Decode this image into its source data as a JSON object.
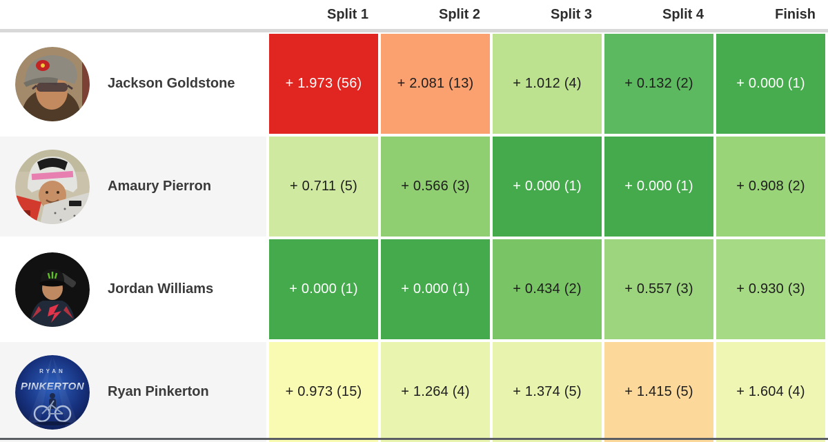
{
  "table": {
    "columns": [
      "Split 1",
      "Split 2",
      "Split 3",
      "Split 4",
      "Finish"
    ],
    "riders": [
      {
        "name": "Jackson Goldstone",
        "avatar": "jackson",
        "cells": [
          {
            "text": "+ 1.973 (56)",
            "bg": "#e12521",
            "fg": "#ffffff"
          },
          {
            "text": "+ 2.081 (13)",
            "bg": "#fba170",
            "fg": "#1d1d1d"
          },
          {
            "text": "+ 1.012 (4)",
            "bg": "#bce28f",
            "fg": "#1d1d1d"
          },
          {
            "text": "+ 0.132 (2)",
            "bg": "#5db95f",
            "fg": "#1d1d1d"
          },
          {
            "text": "+ 0.000 (1)",
            "bg": "#47ac4e",
            "fg": "#ffffff"
          }
        ]
      },
      {
        "name": "Amaury Pierron",
        "avatar": "amaury",
        "cells": [
          {
            "text": "+ 0.711 (5)",
            "bg": "#cfe9a1",
            "fg": "#1d1d1d"
          },
          {
            "text": "+ 0.566 (3)",
            "bg": "#8fcf71",
            "fg": "#1d1d1d"
          },
          {
            "text": "+ 0.000 (1)",
            "bg": "#44aa4c",
            "fg": "#ffffff"
          },
          {
            "text": "+ 0.000 (1)",
            "bg": "#44aa4c",
            "fg": "#ffffff"
          },
          {
            "text": "+ 0.908 (2)",
            "bg": "#9ad478",
            "fg": "#1d1d1d"
          }
        ]
      },
      {
        "name": "Jordan Williams",
        "avatar": "jordan",
        "cells": [
          {
            "text": "+ 0.000 (1)",
            "bg": "#44aa4c",
            "fg": "#ffffff"
          },
          {
            "text": "+ 0.000 (1)",
            "bg": "#44aa4c",
            "fg": "#ffffff"
          },
          {
            "text": "+ 0.434 (2)",
            "bg": "#79c464",
            "fg": "#1d1d1d"
          },
          {
            "text": "+ 0.557 (3)",
            "bg": "#9cd57d",
            "fg": "#1d1d1d"
          },
          {
            "text": "+ 0.930 (3)",
            "bg": "#a7da84",
            "fg": "#1d1d1d"
          }
        ]
      },
      {
        "name": "Ryan Pinkerton",
        "avatar": "ryan",
        "avatar_text": {
          "line1": "RYAN",
          "line2": "PINKERTON"
        },
        "cells": [
          {
            "text": "+ 0.973 (15)",
            "bg": "#fafbb2",
            "fg": "#1d1d1d"
          },
          {
            "text": "+ 1.264 (4)",
            "bg": "#e9f4ae",
            "fg": "#1d1d1d"
          },
          {
            "text": "+ 1.374 (5)",
            "bg": "#e8f3ad",
            "fg": "#1d1d1d"
          },
          {
            "text": "+ 1.415 (5)",
            "bg": "#fcd99b",
            "fg": "#1d1d1d"
          },
          {
            "text": "+ 1.604 (4)",
            "bg": "#eff6b4",
            "fg": "#1d1d1d"
          }
        ]
      }
    ]
  },
  "palette": {
    "row_alt_bg": "#f5f5f6",
    "separator": "#d8d8d8",
    "header_text": "#2d2d2d",
    "name_text": "#3a3a3a",
    "bottom_bar": "#5a5e62"
  },
  "chart_data": {
    "type": "heatmap",
    "title": "",
    "columns": [
      "Split 1",
      "Split 2",
      "Split 3",
      "Split 4",
      "Finish"
    ],
    "rows": [
      "Jackson Goldstone",
      "Amaury Pierron",
      "Jordan Williams",
      "Ryan Pinkerton"
    ],
    "values_gap_seconds": [
      [
        1.973,
        2.081,
        1.012,
        0.132,
        0.0
      ],
      [
        0.711,
        0.566,
        0.0,
        0.0,
        0.908
      ],
      [
        0.0,
        0.0,
        0.434,
        0.557,
        0.93
      ],
      [
        0.973,
        1.264,
        1.374,
        1.415,
        1.604
      ]
    ],
    "ranks": [
      [
        56,
        13,
        4,
        2,
        1
      ],
      [
        5,
        3,
        1,
        1,
        2
      ],
      [
        1,
        1,
        2,
        3,
        3
      ],
      [
        15,
        4,
        5,
        5,
        4
      ]
    ],
    "cell_label_format": "+ {gap} ({rank})",
    "colorscale": "green (fastest / +0.000) through yellow-green and yellow to orange and red (slowest)",
    "legend_position": "none",
    "grid": false
  }
}
